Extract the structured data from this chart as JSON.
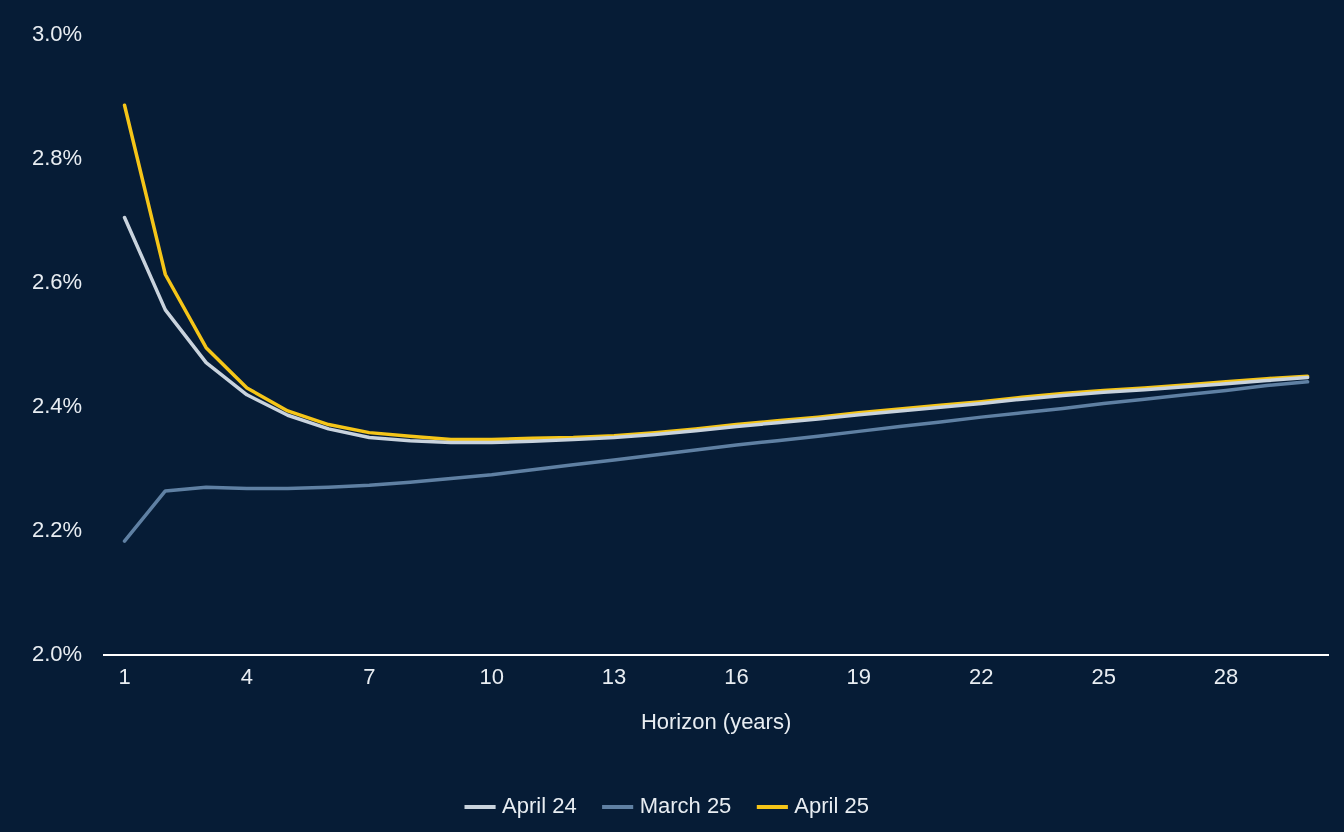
{
  "chart_data": {
    "type": "line",
    "xlabel": "Horizon (years)",
    "x": [
      1,
      2,
      3,
      4,
      5,
      6,
      7,
      8,
      9,
      10,
      11,
      12,
      13,
      14,
      15,
      16,
      17,
      18,
      19,
      20,
      21,
      22,
      23,
      24,
      25,
      26,
      27,
      28,
      29,
      30
    ],
    "series": [
      {
        "name": "April 24",
        "color": "#c9d3dd",
        "values": [
          2.706,
          2.557,
          2.472,
          2.42,
          2.387,
          2.365,
          2.351,
          2.346,
          2.343,
          2.343,
          2.345,
          2.348,
          2.351,
          2.356,
          2.362,
          2.369,
          2.375,
          2.381,
          2.388,
          2.394,
          2.4,
          2.406,
          2.413,
          2.419,
          2.424,
          2.428,
          2.433,
          2.438,
          2.443,
          2.448
        ]
      },
      {
        "name": "March 25",
        "color": "#5f80a3",
        "values": [
          2.184,
          2.265,
          2.271,
          2.269,
          2.269,
          2.271,
          2.274,
          2.279,
          2.285,
          2.291,
          2.299,
          2.307,
          2.315,
          2.323,
          2.331,
          2.339,
          2.346,
          2.353,
          2.361,
          2.369,
          2.376,
          2.384,
          2.391,
          2.398,
          2.406,
          2.413,
          2.42,
          2.427,
          2.435,
          2.441
        ]
      },
      {
        "name": "April 25",
        "color": "#f5c518",
        "values": [
          2.887,
          2.614,
          2.496,
          2.431,
          2.394,
          2.372,
          2.359,
          2.353,
          2.348,
          2.348,
          2.35,
          2.351,
          2.354,
          2.359,
          2.365,
          2.372,
          2.378,
          2.384,
          2.391,
          2.397,
          2.403,
          2.409,
          2.416,
          2.422,
          2.427,
          2.431,
          2.436,
          2.441,
          2.446,
          2.45
        ]
      }
    ],
    "xlim": [
      0.5,
      30.5
    ],
    "xticks": [
      1,
      4,
      7,
      10,
      13,
      16,
      19,
      22,
      25,
      28
    ],
    "ylim": [
      2.0,
      3.0
    ],
    "yticks": [
      {
        "value": 2.0,
        "label": "2.0%"
      },
      {
        "value": 2.2,
        "label": "2.2%"
      },
      {
        "value": 2.4,
        "label": "2.4%"
      },
      {
        "value": 2.6,
        "label": "2.6%"
      },
      {
        "value": 2.8,
        "label": "2.8%"
      },
      {
        "value": 3.0,
        "label": "3.0%"
      }
    ],
    "grid": false,
    "legend": "bottom",
    "marker": "none",
    "line_style": "solid"
  }
}
